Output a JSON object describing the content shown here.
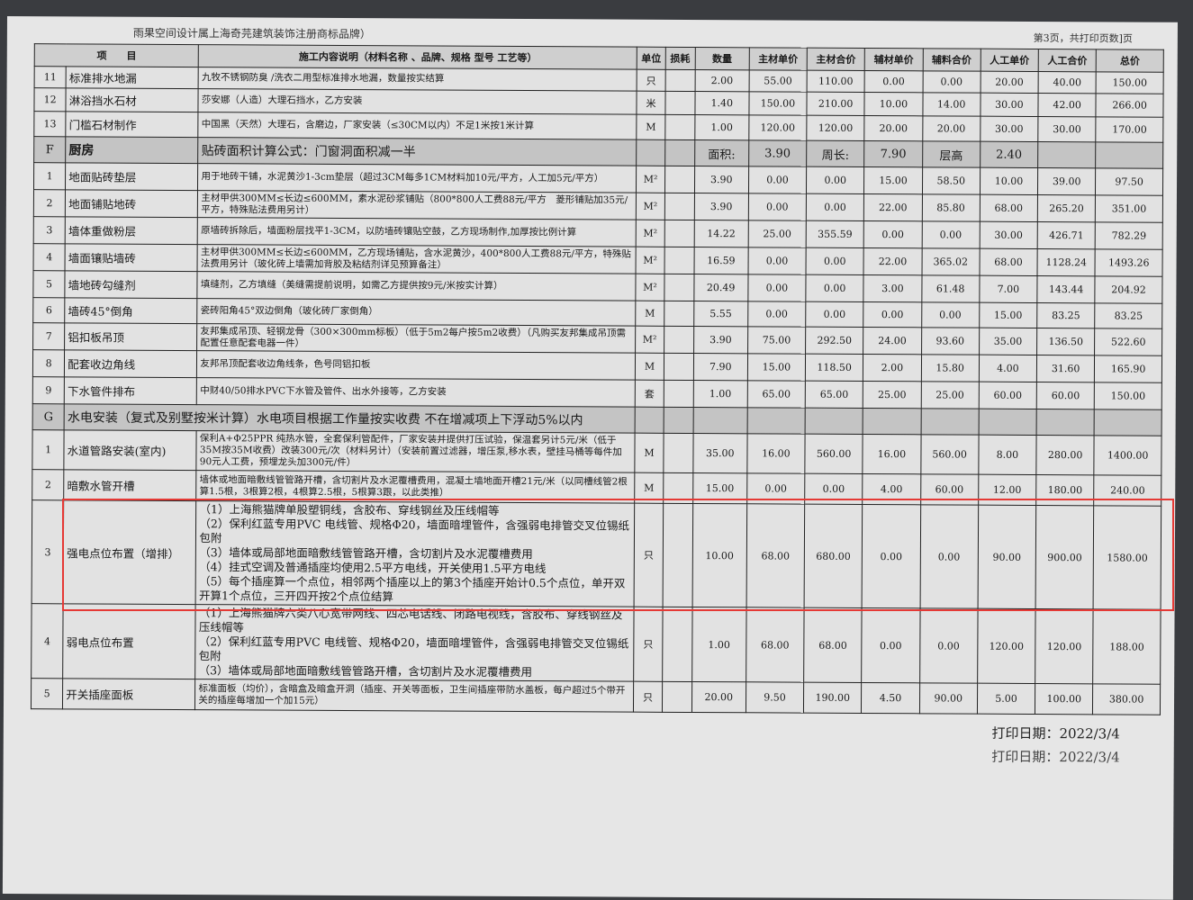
{
  "header": {
    "brand_note": "雨果空间设计属上海奇芫建筑装饰注册商标品牌）",
    "page_info": "第3页，共打印页数]页"
  },
  "columns": [
    "项　　目",
    "施工内容说明（材料名称 、品牌、规格 型号 工艺等）",
    "单位",
    "损耗",
    "数量",
    "主材单价",
    "主材合价",
    "辅材单价",
    "辅料合价",
    "人工单价",
    "人工合价",
    "总价"
  ],
  "rows": [
    {
      "type": "item",
      "no": "11",
      "item": "标准排水地漏",
      "desc": "九牧不锈钢防臭 /洗衣二用型标准排水地漏，数量按实结算",
      "unit": "只",
      "qty": "2.00",
      "main_unit": "55.00",
      "main_total": "110.00",
      "aux_unit": "0.00",
      "aux_total": "0.00",
      "labor_unit": "20.00",
      "labor_total": "40.00",
      "total": "150.00"
    },
    {
      "type": "item",
      "no": "12",
      "item": "淋浴挡水石材",
      "desc": "莎安娜（人造）大理石挡水，乙方安装",
      "unit": "米",
      "qty": "1.40",
      "main_unit": "150.00",
      "main_total": "210.00",
      "aux_unit": "10.00",
      "aux_total": "14.00",
      "labor_unit": "30.00",
      "labor_total": "42.00",
      "total": "266.00"
    },
    {
      "type": "item",
      "no": "13",
      "item": "门槛石材制作",
      "desc": "中国黑（天然）大理石，含磨边，厂家安装（≤30CM以内）不足1米按1米计算",
      "unit": "M",
      "qty": "1.00",
      "main_unit": "120.00",
      "main_total": "120.00",
      "aux_unit": "20.00",
      "aux_total": "20.00",
      "labor_unit": "30.00",
      "labor_total": "30.00",
      "total": "170.00"
    },
    {
      "type": "section_f",
      "no": "F",
      "item": "厨房",
      "desc": "贴砖面积计算公式：门窗洞面积减一半",
      "area_label": "面积:",
      "area": "3.90",
      "perimeter_label": "周长:",
      "perimeter": "7.90",
      "height_label": "层高",
      "height": "2.40"
    },
    {
      "type": "item",
      "no": "1",
      "item": "地面贴砖垫层",
      "desc": "用于地砖干铺，水泥黄沙1-3cm垫层（超过3CM每多1CM材料加10元/平方，人工加5元/平方）",
      "unit": "M²",
      "qty": "3.90",
      "main_unit": "0.00",
      "main_total": "0.00",
      "aux_unit": "15.00",
      "aux_total": "58.50",
      "labor_unit": "10.00",
      "labor_total": "39.00",
      "total": "97.50"
    },
    {
      "type": "item",
      "no": "2",
      "item": "地面铺贴地砖",
      "desc": "主材甲供300MM≤长边≤600MM，素水泥砂浆铺贴（800*800人工费88元/平方　菱形铺贴加35元/平方，特殊贴法费用另计）",
      "unit": "M²",
      "qty": "3.90",
      "main_unit": "0.00",
      "main_total": "0.00",
      "aux_unit": "22.00",
      "aux_total": "85.80",
      "labor_unit": "68.00",
      "labor_total": "265.20",
      "total": "351.00"
    },
    {
      "type": "item",
      "no": "3",
      "item": "墙体重做粉层",
      "desc": "原墙砖拆除后，墙面粉层找平1-3CM，以防墙砖镶贴空鼓，乙方现场制作,加厚按比例计算",
      "unit": "M²",
      "qty": "14.22",
      "main_unit": "25.00",
      "main_total": "355.59",
      "aux_unit": "0.00",
      "aux_total": "0.00",
      "labor_unit": "30.00",
      "labor_total": "426.71",
      "total": "782.29"
    },
    {
      "type": "item",
      "no": "4",
      "item": "墙面镶贴墙砖",
      "desc": "主材甲供300MM≤长边≤600MM，乙方现场铺贴，含水泥黄沙，400*800人工费88元/平方，特殊贴法费用另计（玻化砖上墙需加背胶及粘结剂详见预算备注）",
      "unit": "M²",
      "qty": "16.59",
      "main_unit": "0.00",
      "main_total": "0.00",
      "aux_unit": "22.00",
      "aux_total": "365.02",
      "labor_unit": "68.00",
      "labor_total": "1128.24",
      "total": "1493.26"
    },
    {
      "type": "item",
      "no": "5",
      "item": "墙地砖勾缝剂",
      "desc": "填缝剂，乙方填缝（美缝需提前说明，如需乙方提供按9元/米按实计算）",
      "unit": "M²",
      "qty": "20.49",
      "main_unit": "0.00",
      "main_total": "0.00",
      "aux_unit": "3.00",
      "aux_total": "61.48",
      "labor_unit": "7.00",
      "labor_total": "143.44",
      "total": "204.92"
    },
    {
      "type": "item",
      "no": "6",
      "item": "墙砖45°倒角",
      "desc": "瓷砖阳角45°双边倒角（玻化砖厂家倒角）",
      "unit": "M",
      "qty": "5.55",
      "main_unit": "0.00",
      "main_total": "0.00",
      "aux_unit": "0.00",
      "aux_total": "0.00",
      "labor_unit": "15.00",
      "labor_total": "83.25",
      "total": "83.25"
    },
    {
      "type": "item",
      "no": "7",
      "item": "铝扣板吊顶",
      "desc": "友邦集成吊顶、轻钢龙骨（300×300mm标板）（低于5m2每户按5m2收费）（凡购买友邦集成吊顶需配置任意配套电器一件）",
      "unit": "M²",
      "qty": "3.90",
      "main_unit": "75.00",
      "main_total": "292.50",
      "aux_unit": "24.00",
      "aux_total": "93.60",
      "labor_unit": "35.00",
      "labor_total": "136.50",
      "total": "522.60"
    },
    {
      "type": "item",
      "no": "8",
      "item": "配套收边角线",
      "desc": "友邦吊顶配套收边角线条，色号同铝扣板",
      "unit": "M",
      "qty": "7.90",
      "main_unit": "15.00",
      "main_total": "118.50",
      "aux_unit": "2.00",
      "aux_total": "15.80",
      "labor_unit": "4.00",
      "labor_total": "31.60",
      "total": "165.90"
    },
    {
      "type": "item",
      "no": "9",
      "item": "下水管件排布",
      "desc": "中财40/50排水PVC下水管及管件、出水外接等，乙方安装",
      "unit": "套",
      "qty": "1.00",
      "main_unit": "65.00",
      "main_total": "65.00",
      "aux_unit": "25.00",
      "aux_total": "25.00",
      "labor_unit": "60.00",
      "labor_total": "60.00",
      "total": "150.00"
    },
    {
      "type": "section_g",
      "no": "G",
      "item": "水电安装（复式及别墅按米计算）水电项目根据工作量按实收费 不在增减项上下浮动5%以内"
    },
    {
      "type": "item",
      "no": "1",
      "item": "水道管路安装(室内)",
      "desc": "保利A+Φ25PPR 纯热水管，全套保利管配件，厂家安装并提供打压试验，保温套另计5元/米（低于35M按35M收费）改装300元/次（材料另计）（安装前置过滤器，增压泵,移水表，壁挂马桶等每件加90元人工费，预埋龙头加300元/件）",
      "unit": "M",
      "qty": "35.00",
      "main_unit": "16.00",
      "main_total": "560.00",
      "aux_unit": "16.00",
      "aux_total": "560.00",
      "labor_unit": "8.00",
      "labor_total": "280.00",
      "total": "1400.00"
    },
    {
      "type": "item",
      "no": "2",
      "item": "暗敷水管开槽",
      "desc": "墙体或地面暗敷线管管路开槽，含切割片及水泥覆槽费用，混凝土墙地面开槽21元/米（以同槽线管2根算1.5根，3根算2根，4根算2.5根，5根算3跟，以此类推）",
      "unit": "M",
      "qty": "15.00",
      "main_unit": "0.00",
      "main_total": "0.00",
      "aux_unit": "4.00",
      "aux_total": "60.00",
      "labor_unit": "12.00",
      "labor_total": "180.00",
      "total": "240.00"
    },
    {
      "type": "item",
      "big": true,
      "no": "3",
      "item": "强电点位布置（增排）",
      "desc": "（1）上海熊猫牌单股塑铜线，含胶布、穿线钢丝及压线帽等\n（2）保利红蓝专用PVC 电线管、规格Φ20，墙面暗埋管件，含强弱电排管交叉位锡纸包附\n（3）墙体或局部地面暗敷线管管路开槽，含切割片及水泥覆槽费用\n（4）挂式空调及普通插座均使用2.5平方电线，开关使用1.5平方电线\n（5）每个插座算一个点位，相邻两个插座以上的第3个插座开始计0.5个点位，单开双开算1个点位，三开四开按2个点位结算",
      "unit": "只",
      "qty": "10.00",
      "main_unit": "68.00",
      "main_total": "680.00",
      "aux_unit": "0.00",
      "aux_total": "0.00",
      "labor_unit": "90.00",
      "labor_total": "900.00",
      "total": "1580.00"
    },
    {
      "type": "item",
      "big": true,
      "no": "4",
      "item": "弱电点位布置",
      "desc": "（1）上海熊猫牌六类八心宽带网线、四芯电话线、闭路电视线，含胶布、穿线钢丝及压线帽等\n（2）保利红蓝专用PVC 电线管、规格Φ20，墙面暗埋管件，含强弱电排管交叉位锡纸包附\n（3）墙体或局部地面暗敷线管管路开槽，含切割片及水泥覆槽费用",
      "unit": "只",
      "qty": "1.00",
      "main_unit": "68.00",
      "main_total": "68.00",
      "aux_unit": "0.00",
      "aux_total": "0.00",
      "labor_unit": "120.00",
      "labor_total": "120.00",
      "total": "188.00"
    },
    {
      "type": "item",
      "no": "5",
      "item": "开关插座面板",
      "desc": "标准面板（均价），含暗盒及暗盒开洞（插座、开关等面板，卫生间插座带防水盖板，每户超过5个带开关的插座每增加一个加15元）",
      "unit": "只",
      "qty": "20.00",
      "main_unit": "9.50",
      "main_total": "190.00",
      "aux_unit": "4.50",
      "aux_total": "90.00",
      "labor_unit": "5.00",
      "labor_total": "100.00",
      "total": "380.00"
    }
  ],
  "footer": {
    "print_date": "打印日期：2022/3/4",
    "print_date_underpage": "打印日期：2022/3/4"
  },
  "colors": {
    "highlight": "#e53935",
    "section_bg": "#c4c4c4",
    "paper": "#e6e6e6"
  }
}
